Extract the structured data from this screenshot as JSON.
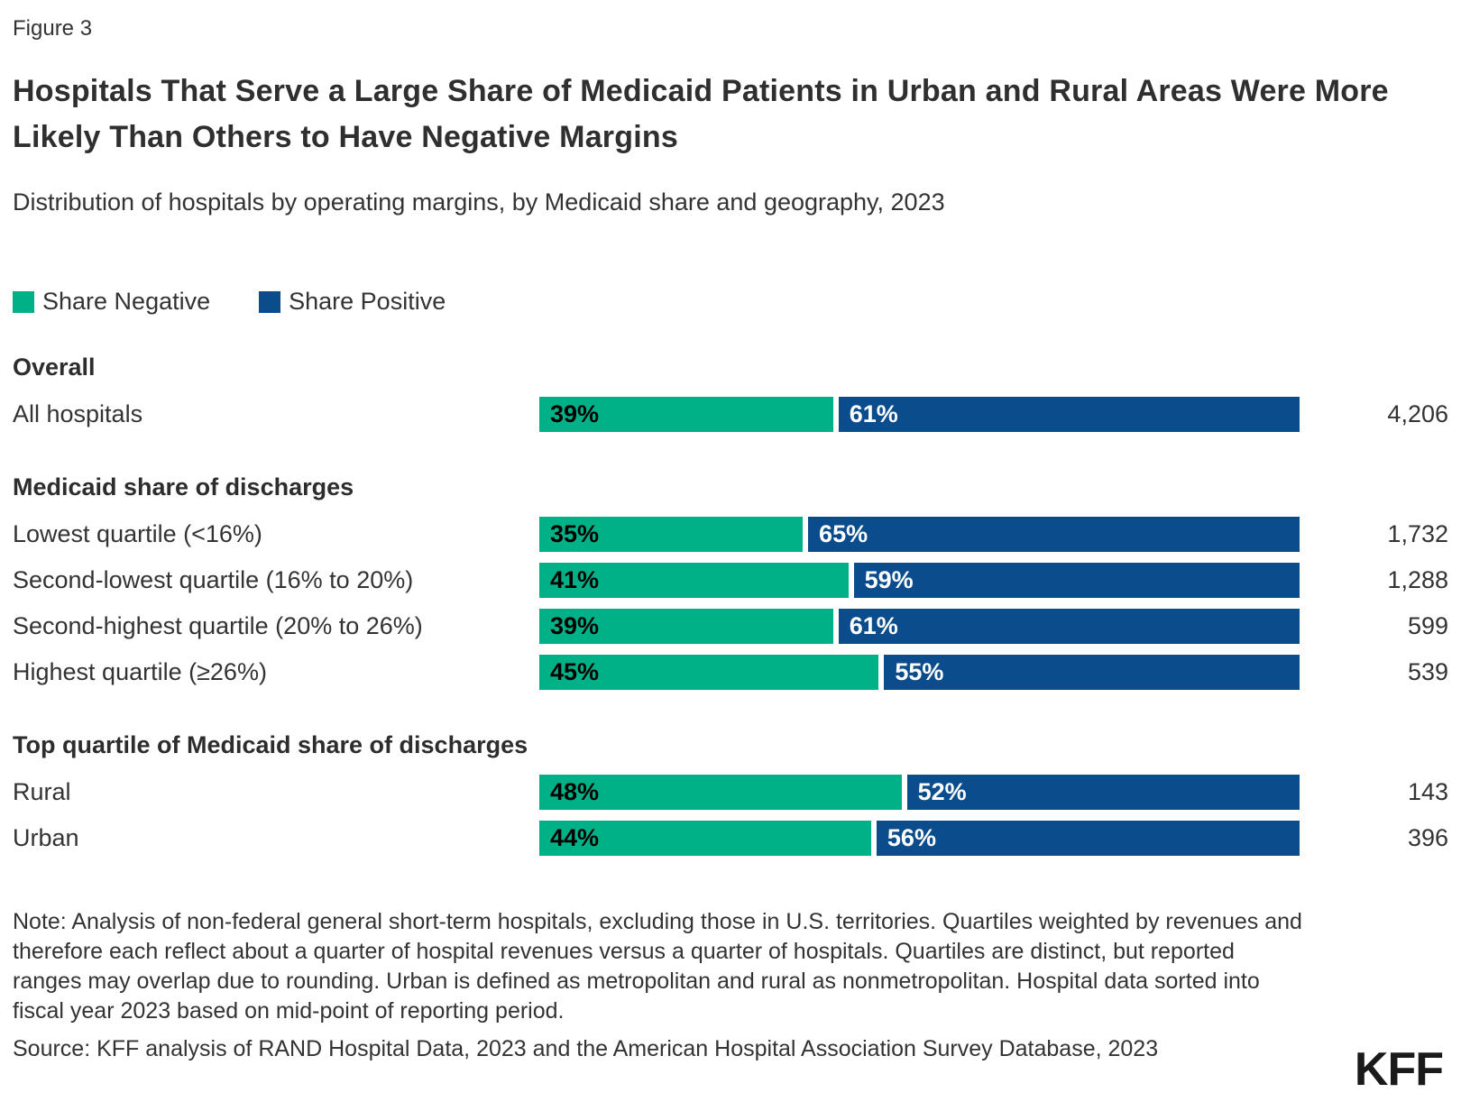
{
  "figure_label": "Figure 3",
  "title": "Hospitals That Serve a Large Share of Medicaid Patients in Urban and Rural Areas Were More Likely Than Others to Have Negative Margins",
  "subtitle": "Distribution of hospitals by operating margins, by Medicaid share and geography, 2023",
  "colors": {
    "negative": "#00B188",
    "positive": "#0B4D8C",
    "text": "#333333"
  },
  "legend": {
    "negative_label": "Share Negative",
    "positive_label": "Share Positive"
  },
  "chart_data": {
    "type": "bar",
    "orientation": "horizontal",
    "stacked": true,
    "unit": "%",
    "series_names": [
      "Share Negative",
      "Share Positive"
    ],
    "x_range": [
      0,
      100
    ],
    "grid": false,
    "legend_position": "top-left",
    "sections": [
      {
        "header": "Overall",
        "rows": [
          {
            "label": "All hospitals",
            "negative": 39,
            "positive": 61,
            "count": "4,206"
          }
        ]
      },
      {
        "header": "Medicaid share of discharges",
        "rows": [
          {
            "label": "Lowest quartile (<16%)",
            "negative": 35,
            "positive": 65,
            "count": "1,732"
          },
          {
            "label": "Second-lowest quartile (16% to 20%)",
            "negative": 41,
            "positive": 59,
            "count": "1,288"
          },
          {
            "label": "Second-highest quartile (20% to 26%)",
            "negative": 39,
            "positive": 61,
            "count": "599"
          },
          {
            "label": "Highest quartile (≥26%)",
            "negative": 45,
            "positive": 55,
            "count": "539"
          }
        ]
      },
      {
        "header": "Top quartile of Medicaid share of discharges",
        "rows": [
          {
            "label": "Rural",
            "negative": 48,
            "positive": 52,
            "count": "143"
          },
          {
            "label": "Urban",
            "negative": 44,
            "positive": 56,
            "count": "396"
          }
        ]
      }
    ]
  },
  "note": "Note: Analysis of non-federal general short-term hospitals, excluding those in U.S. territories. Quartiles weighted by revenues and therefore each reflect about a quarter of hospital revenues versus a quarter of hospitals. Quartiles are distinct, but reported ranges may overlap due to rounding. Urban is defined as metropolitan and rural as nonmetropolitan. Hospital data sorted into fiscal year 2023 based on mid-point of reporting period.",
  "source": "Source: KFF analysis of RAND Hospital Data, 2023 and the American Hospital Association Survey Database, 2023",
  "logo_text": "KFF"
}
